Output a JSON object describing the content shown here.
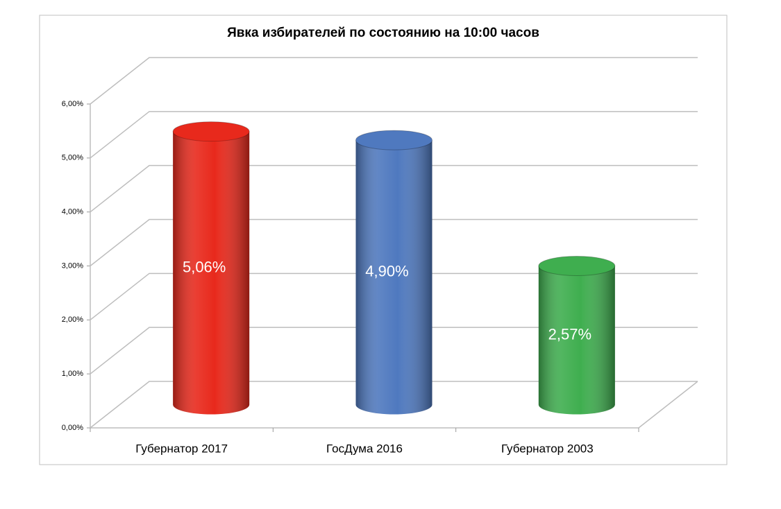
{
  "chart_data": {
    "type": "bar3d",
    "title": "Явка избирателей по состоянию на 10:00 часов",
    "categories": [
      "Губернатор 2017",
      "ГосДума 2016",
      "Губернатор 2003"
    ],
    "values": [
      5.06,
      4.9,
      2.57
    ],
    "value_labels": [
      "5,06%",
      "4,90%",
      "2,57%"
    ],
    "colors": [
      "#e8291c",
      "#4f79bf",
      "#3fae4f"
    ],
    "ylim": [
      0,
      6
    ],
    "yticks": [
      {
        "value": 0,
        "label": "0,00%"
      },
      {
        "value": 1,
        "label": "1,00%"
      },
      {
        "value": 2,
        "label": "2,00%"
      },
      {
        "value": 3,
        "label": "3,00%"
      },
      {
        "value": 4,
        "label": "4,00%"
      },
      {
        "value": 5,
        "label": "5,00%"
      },
      {
        "value": 6,
        "label": "6,00%"
      }
    ],
    "grid": true
  }
}
